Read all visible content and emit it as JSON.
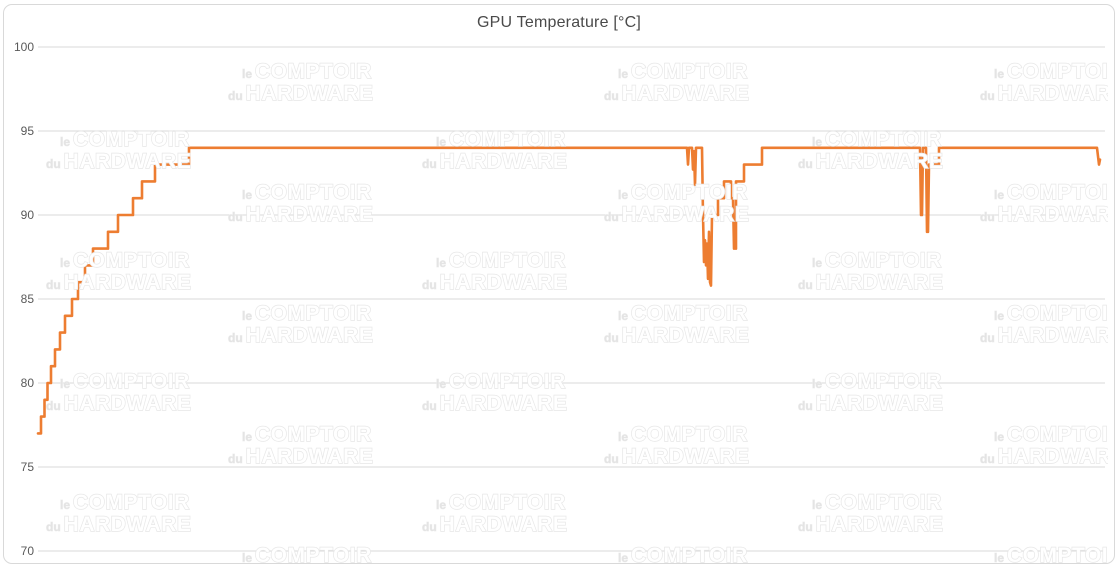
{
  "header": {
    "title": "GPU Temperature [°C]"
  },
  "watermark": {
    "prefix_line1": "le",
    "word_line1": "COMPTOIR",
    "prefix_line2": "du",
    "word_line2": "HARDWARE"
  },
  "colors": {
    "line": "#ED7D31",
    "gridline": "#D9D9D9",
    "widget_border": "#D9D9D9",
    "tick_label": "#595959",
    "title": "#4a4a4a",
    "watermark_outline": "#E7E7E7"
  },
  "chart_data": {
    "type": "line",
    "title": "GPU Temperature [°C]",
    "xlabel": "",
    "ylabel": "",
    "ylim": [
      70,
      100
    ],
    "yticks": [
      100,
      95,
      90,
      85,
      80,
      75,
      70
    ],
    "grid": true,
    "legend": false,
    "x_axis_labels_visible": false,
    "series": [
      {
        "name": "GPU Temperature [°C]",
        "color": "#ED7D31",
        "note": "points are [x_px_estimated, temperature_C]; no x tick labels are shown in the chart",
        "points": [
          [
            38,
            77
          ],
          [
            41,
            77
          ],
          [
            41,
            78
          ],
          [
            44.5,
            78
          ],
          [
            44.5,
            79
          ],
          [
            47.5,
            79
          ],
          [
            47.5,
            80
          ],
          [
            51,
            80
          ],
          [
            51,
            81
          ],
          [
            55,
            81
          ],
          [
            55,
            82
          ],
          [
            60,
            82
          ],
          [
            60,
            83
          ],
          [
            65,
            83
          ],
          [
            65,
            84
          ],
          [
            72,
            84
          ],
          [
            72,
            85
          ],
          [
            78,
            85
          ],
          [
            78,
            86
          ],
          [
            85,
            86
          ],
          [
            85,
            87
          ],
          [
            93,
            87
          ],
          [
            93,
            88
          ],
          [
            108,
            88
          ],
          [
            108,
            89
          ],
          [
            118,
            89
          ],
          [
            118,
            90
          ],
          [
            133,
            90
          ],
          [
            133,
            91
          ],
          [
            142,
            91
          ],
          [
            142,
            92
          ],
          [
            155,
            92
          ],
          [
            155,
            93
          ],
          [
            189,
            93
          ],
          [
            189,
            94
          ],
          [
            687,
            94
          ],
          [
            688,
            93
          ],
          [
            689,
            94
          ],
          [
            692,
            94
          ],
          [
            693,
            92.7
          ],
          [
            694,
            93.8
          ],
          [
            695,
            91.8
          ],
          [
            696,
            94
          ],
          [
            702,
            94
          ],
          [
            703,
            90
          ],
          [
            704,
            87.2
          ],
          [
            705,
            88.5
          ],
          [
            706,
            87
          ],
          [
            707,
            88.3
          ],
          [
            708,
            86.2
          ],
          [
            709,
            89
          ],
          [
            710,
            86
          ],
          [
            711,
            85.8
          ],
          [
            712,
            90
          ],
          [
            715,
            90
          ],
          [
            718,
            90
          ],
          [
            718,
            91
          ],
          [
            724,
            91
          ],
          [
            724,
            92
          ],
          [
            731,
            92
          ],
          [
            731,
            91
          ],
          [
            733,
            91
          ],
          [
            734,
            88
          ],
          [
            736,
            88
          ],
          [
            736,
            92
          ],
          [
            744,
            92
          ],
          [
            744,
            93
          ],
          [
            762,
            93
          ],
          [
            762,
            94
          ],
          [
            920,
            94
          ],
          [
            921,
            90
          ],
          [
            922,
            90
          ],
          [
            923,
            94
          ],
          [
            926,
            94
          ],
          [
            927,
            89
          ],
          [
            928,
            89
          ],
          [
            929,
            93
          ],
          [
            939,
            93
          ],
          [
            939,
            94
          ],
          [
            1097,
            94
          ],
          [
            1099,
            93
          ],
          [
            1100,
            93.3
          ]
        ]
      }
    ]
  }
}
